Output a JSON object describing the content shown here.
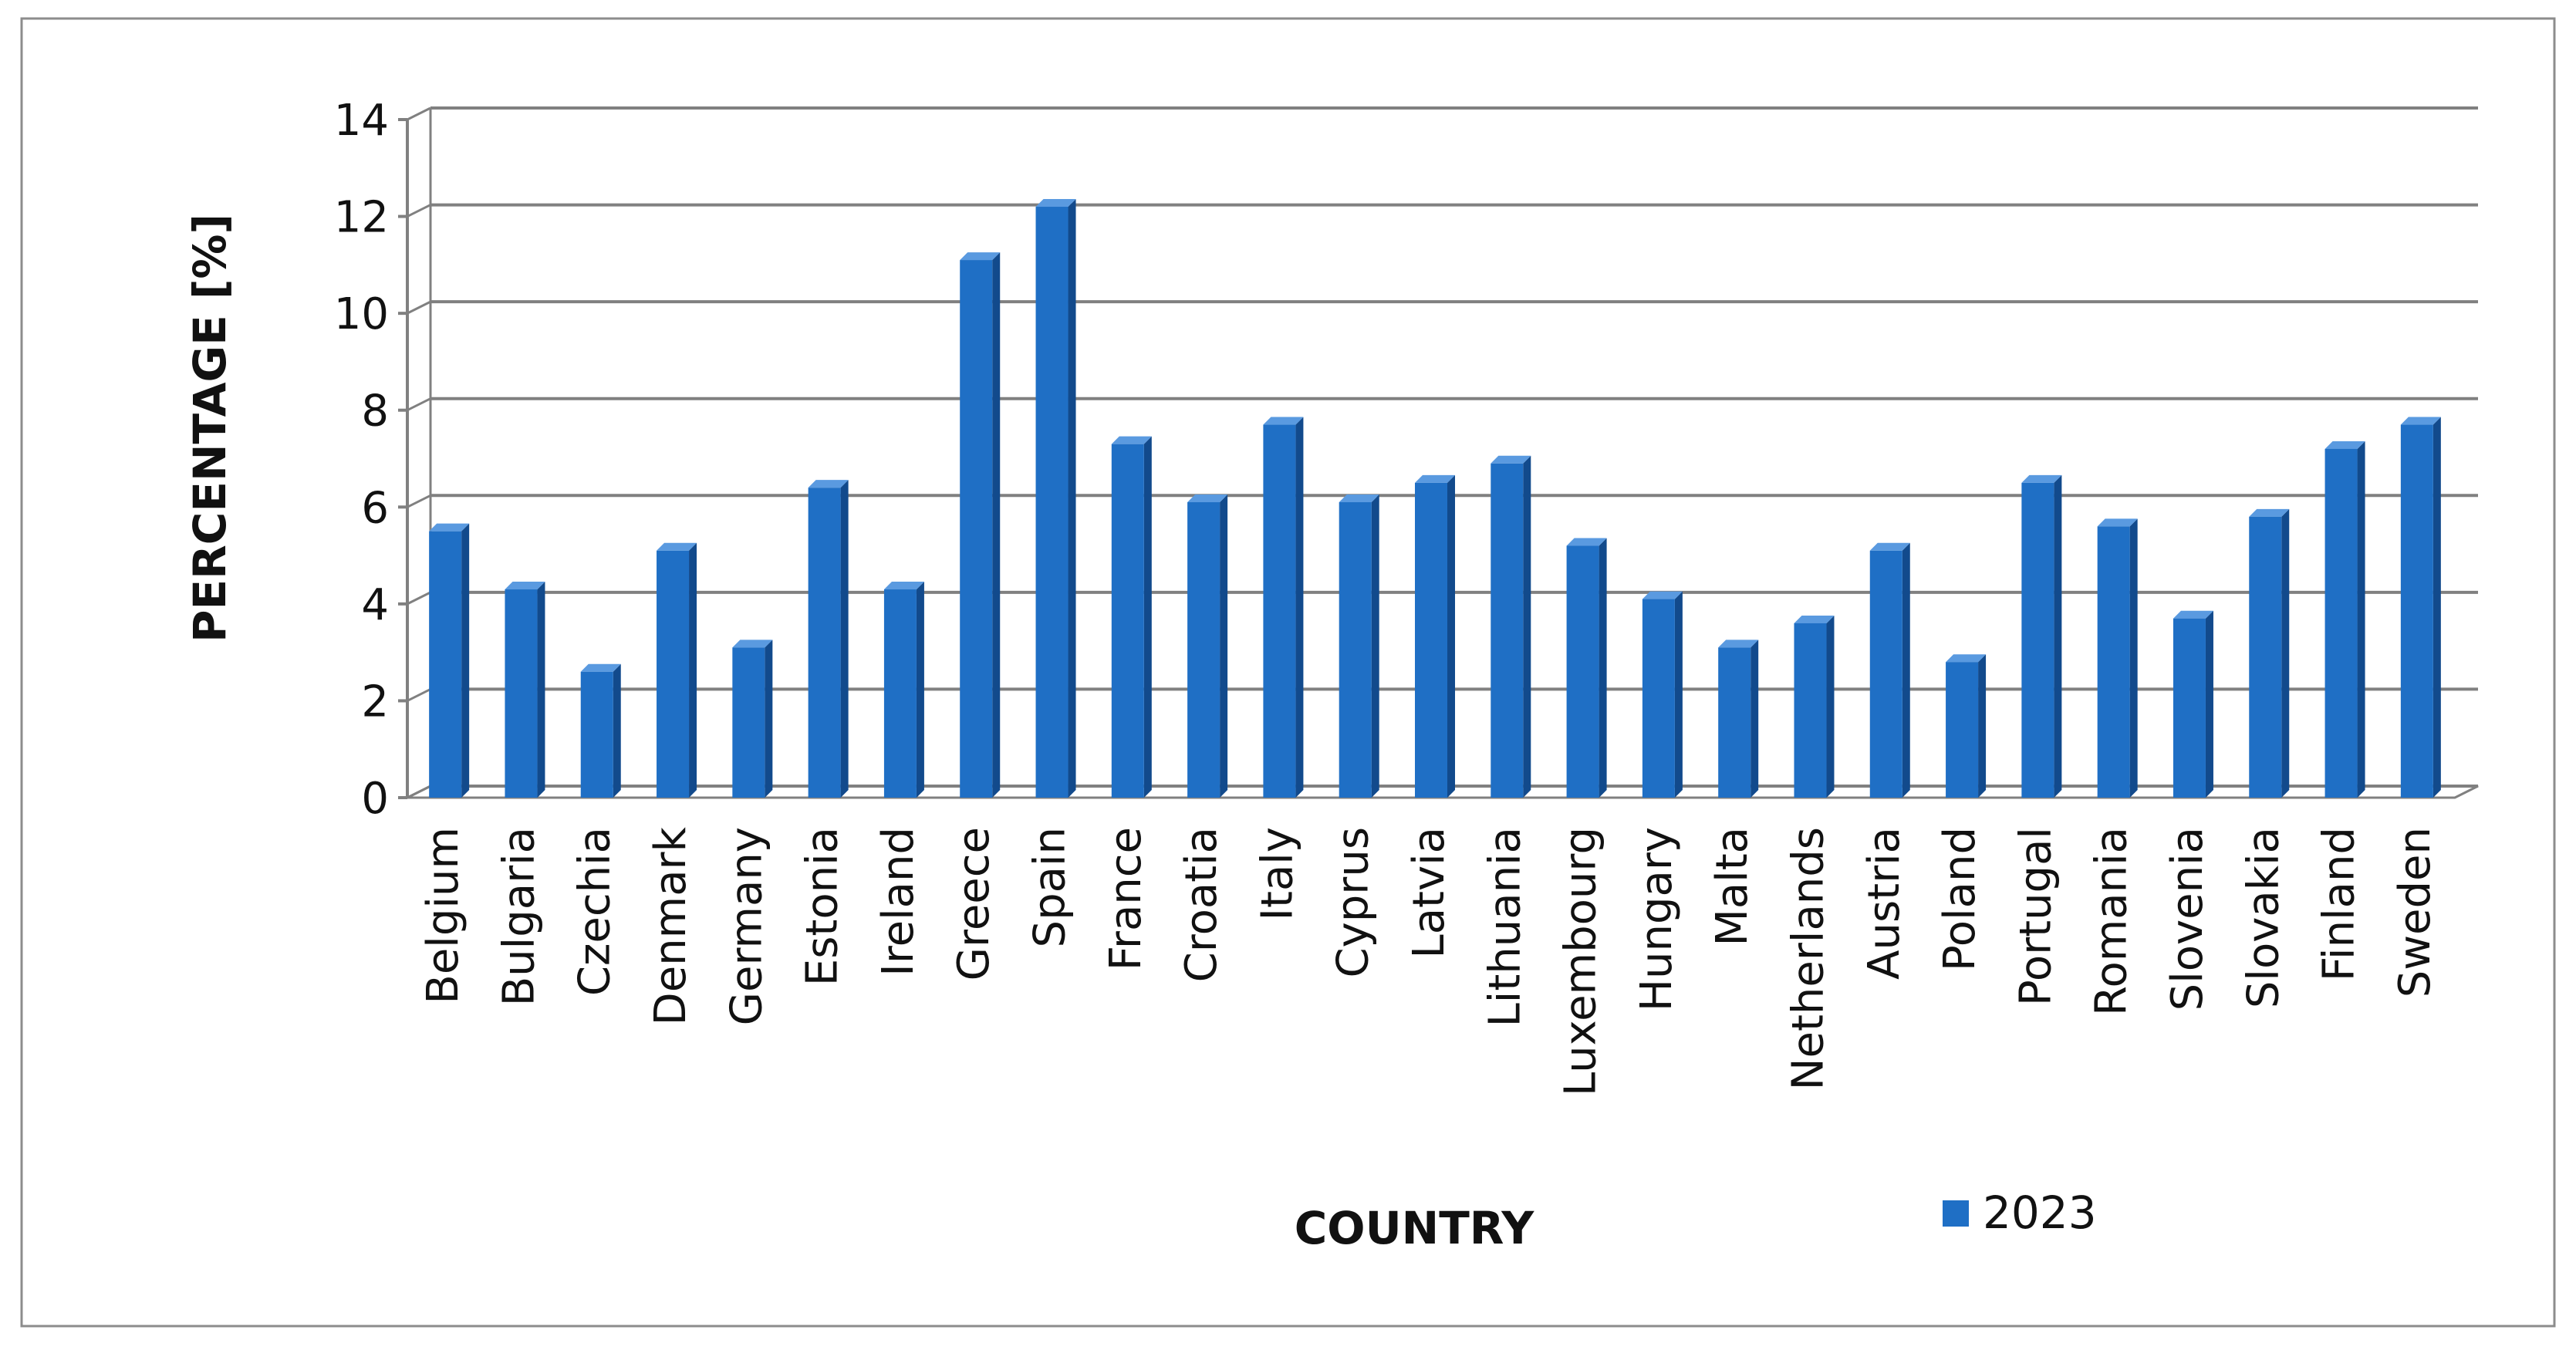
{
  "chart_data": {
    "type": "bar",
    "title": "",
    "xlabel": "COUNTRY",
    "ylabel": "PERCENTAGE [%]",
    "ylim": [
      0,
      14
    ],
    "yticks": [
      0,
      2,
      4,
      6,
      8,
      10,
      12,
      14
    ],
    "grid": true,
    "legend": "bottom-right",
    "categories": [
      "Belgium",
      "Bulgaria",
      "Czechia",
      "Denmark",
      "Germany",
      "Estonia",
      "Ireland",
      "Greece",
      "Spain",
      "France",
      "Croatia",
      "Italy",
      "Cyprus",
      "Latvia",
      "Lithuania",
      "Luxembourg",
      "Hungary",
      "Malta",
      "Netherlands",
      "Austria",
      "Poland",
      "Portugal",
      "Romania",
      "Slovenia",
      "Slovakia",
      "Finland",
      "Sweden"
    ],
    "series": [
      {
        "name": "2023",
        "color": "#1f6fc5",
        "values": [
          5.5,
          4.3,
          2.6,
          5.1,
          3.1,
          6.4,
          4.3,
          11.1,
          12.2,
          7.3,
          6.1,
          7.7,
          6.1,
          6.5,
          6.9,
          5.2,
          4.1,
          3.1,
          3.6,
          5.1,
          2.8,
          6.5,
          5.6,
          3.7,
          5.8,
          7.2,
          7.7
        ]
      }
    ]
  }
}
